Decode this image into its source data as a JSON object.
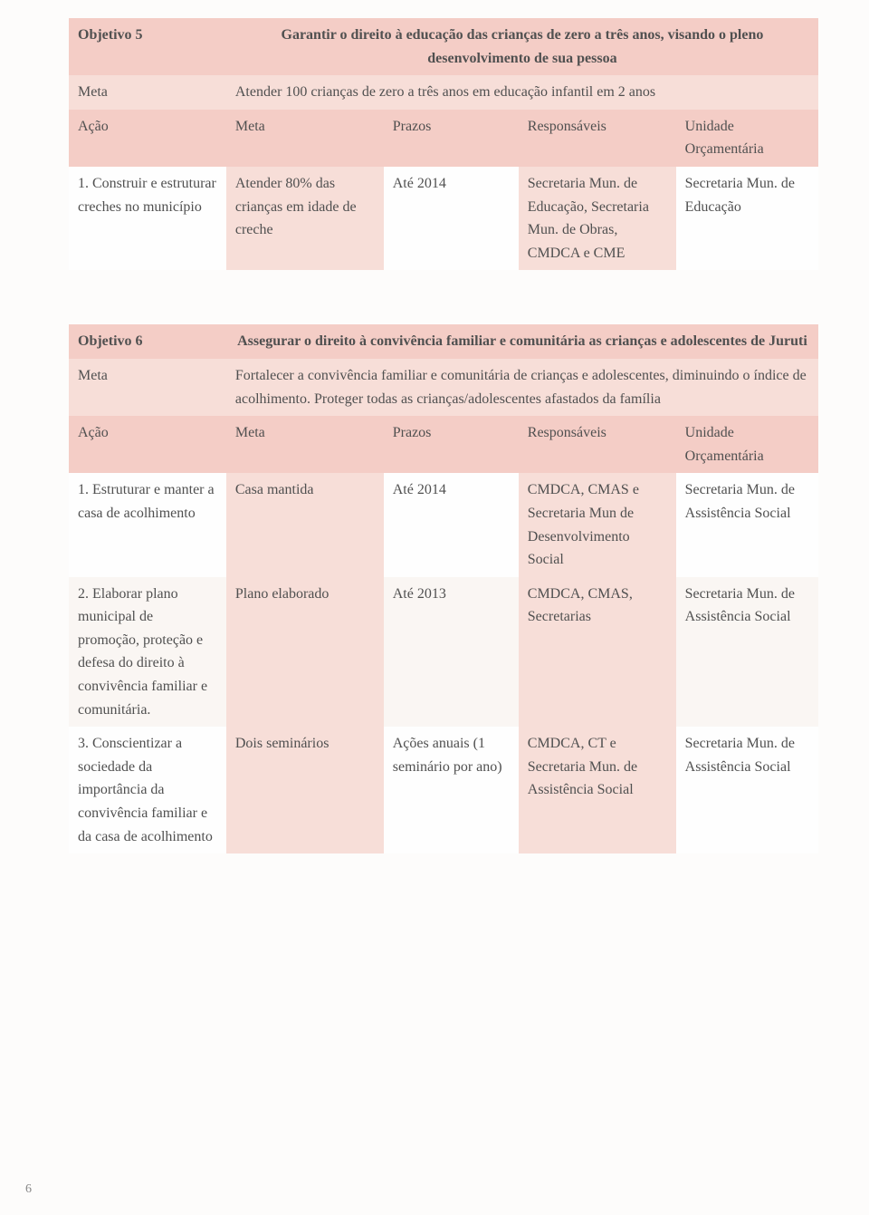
{
  "table1": {
    "obj_label": "Objetivo 5",
    "obj_text": "Garantir o direito à educação das crianças de zero a três anos, visando o pleno desenvolvimento de sua pessoa",
    "meta_label": "Meta",
    "meta_text": "Atender 100 crianças de zero a três anos em educação infantil em 2 anos",
    "h_acao": "Ação",
    "h_meta": "Meta",
    "h_prazo": "Prazos",
    "h_resp": "Responsáveis",
    "h_unid": "Unidade Orçamentária",
    "r1": {
      "acao": "1. Construir e estruturar creches no município",
      "meta": "Atender 80% das crianças em idade de creche",
      "prazo": "Até 2014",
      "resp": "Secretaria Mun. de Educação, Secretaria Mun. de Obras, CMDCA e CME",
      "unid": "Secretaria Mun. de Educação"
    }
  },
  "table2": {
    "obj_label": "Objetivo 6",
    "obj_text": "Assegurar o direito à convivência familiar e comunitária as crianças e adolescentes de Juruti",
    "meta_label": "Meta",
    "meta_text": "Fortalecer a convivência familiar e comunitária de crianças e adolescentes, diminuindo o índice de acolhimento. Proteger  todas as crianças/adolescentes afastados da família",
    "h_acao": "Ação",
    "h_meta": "Meta",
    "h_prazo": "Prazos",
    "h_resp": "Responsáveis",
    "h_unid": "Unidade Orçamentária",
    "r1": {
      "acao": "1. Estruturar e manter a casa de acolhimento",
      "meta": "Casa mantida",
      "prazo": "Até 2014",
      "resp": "CMDCA, CMAS e Secretaria Mun de Desenvolvimento Social",
      "unid": "Secretaria Mun. de Assistência Social"
    },
    "r2": {
      "acao": "2. Elaborar plano municipal de promoção, proteção e defesa do direito à convivência familiar e comunitária.",
      "meta": "Plano elaborado",
      "prazo": "Até 2013",
      "resp": "CMDCA, CMAS, Secretarias",
      "unid": "Secretaria Mun. de Assistência Social"
    },
    "r3": {
      "acao": "3. Conscientizar a sociedade da importância da convivência familiar e da casa de acolhimento",
      "meta": "Dois seminários",
      "prazo": "Ações anuais (1 seminário por ano)",
      "resp": "CMDCA, CT e Secretaria Mun. de Assistência Social",
      "unid": "Secretaria Mun. de Assistência Social"
    }
  },
  "pagenum": "6"
}
